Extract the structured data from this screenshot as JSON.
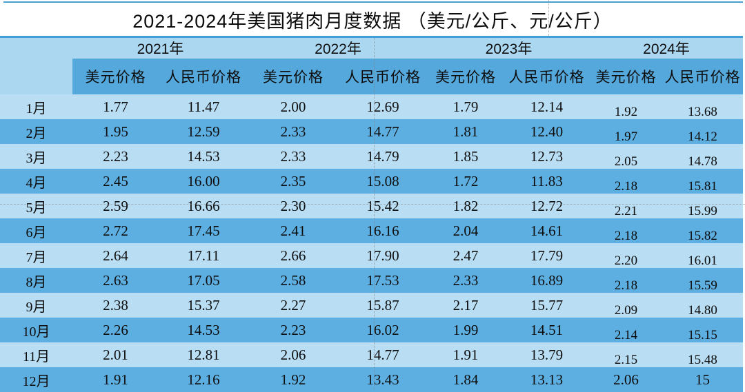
{
  "title": "2021-2024年美国猪肉月度数据 （美元/公斤、元/公斤）",
  "colors": {
    "top_rule": "#4A9FD2",
    "title_rule": "#3FA0D8",
    "year_band": "#ABD7F1",
    "subheader_band": "#55A8DC",
    "row_light": "#B9DEF4",
    "row_dark": "#5EAFE1"
  },
  "table": {
    "years": [
      "2021年",
      "2022年",
      "2023年",
      "2024年"
    ],
    "sub_headers": [
      "美元价格",
      "人民币价格",
      "美元价格",
      "人民币价格",
      "美元价格",
      "人民币价格",
      "美元价格",
      "人民币价格"
    ],
    "rows": [
      {
        "month": "1月",
        "values": [
          "1.77",
          "11.47",
          "2.00",
          "12.69",
          "1.79",
          "12.14",
          "1.92",
          "13.68"
        ]
      },
      {
        "month": "2月",
        "values": [
          "1.95",
          "12.59",
          "2.33",
          "14.77",
          "1.81",
          "12.40",
          "1.97",
          "14.12"
        ]
      },
      {
        "month": "3月",
        "values": [
          "2.23",
          "14.53",
          "2.33",
          "14.79",
          "1.85",
          "12.73",
          "2.05",
          "14.78"
        ]
      },
      {
        "month": "4月",
        "values": [
          "2.45",
          "16.00",
          "2.35",
          "15.08",
          "1.72",
          "11.83",
          "2.18",
          "15.81"
        ]
      },
      {
        "month": "5月",
        "values": [
          "2.59",
          "16.66",
          "2.30",
          "15.42",
          "1.82",
          "12.72",
          "2.21",
          "15.99"
        ]
      },
      {
        "month": "6月",
        "values": [
          "2.72",
          "17.45",
          "2.41",
          "16.16",
          "2.04",
          "14.61",
          "2.18",
          "15.82"
        ]
      },
      {
        "month": "7月",
        "values": [
          "2.64",
          "17.11",
          "2.66",
          "17.90",
          "2.47",
          "17.79",
          "2.20",
          "16.01"
        ]
      },
      {
        "month": "8月",
        "values": [
          "2.63",
          "17.05",
          "2.58",
          "17.53",
          "2.33",
          "16.89",
          "2.18",
          "15.59"
        ]
      },
      {
        "month": "9月",
        "values": [
          "2.38",
          "15.37",
          "2.27",
          "15.87",
          "2.17",
          "15.77",
          "2.09",
          "14.80"
        ]
      },
      {
        "month": "10月",
        "values": [
          "2.26",
          "14.53",
          "2.23",
          "16.02",
          "1.99",
          "14.51",
          "2.14",
          "15.15"
        ]
      },
      {
        "month": "11月",
        "values": [
          "2.01",
          "12.81",
          "2.06",
          "14.77",
          "1.91",
          "13.79",
          "2.15",
          "15.48"
        ]
      },
      {
        "month": "12月",
        "values": [
          "1.91",
          "12.16",
          "1.92",
          "13.43",
          "1.84",
          "13.13",
          "2.06",
          "15"
        ]
      }
    ]
  },
  "chart_data": {
    "type": "table",
    "title": "2021-2024年美国猪肉月度数据 （美元/公斤、元/公斤）",
    "categories": [
      "1月",
      "2月",
      "3月",
      "4月",
      "5月",
      "6月",
      "7月",
      "8月",
      "9月",
      "10月",
      "11月",
      "12月"
    ],
    "series": [
      {
        "name": "2021年 美元价格",
        "values": [
          1.77,
          1.95,
          2.23,
          2.45,
          2.59,
          2.72,
          2.64,
          2.63,
          2.38,
          2.26,
          2.01,
          1.91
        ]
      },
      {
        "name": "2021年 人民币价格",
        "values": [
          11.47,
          12.59,
          14.53,
          16.0,
          16.66,
          17.45,
          17.11,
          17.05,
          15.37,
          14.53,
          12.81,
          12.16
        ]
      },
      {
        "name": "2022年 美元价格",
        "values": [
          2.0,
          2.33,
          2.33,
          2.35,
          2.3,
          2.41,
          2.66,
          2.58,
          2.27,
          2.23,
          2.06,
          1.92
        ]
      },
      {
        "name": "2022年 人民币价格",
        "values": [
          12.69,
          14.77,
          14.79,
          15.08,
          15.42,
          16.16,
          17.9,
          17.53,
          15.87,
          16.02,
          14.77,
          13.43
        ]
      },
      {
        "name": "2023年 美元价格",
        "values": [
          1.79,
          1.81,
          1.85,
          1.72,
          1.82,
          2.04,
          2.47,
          2.33,
          2.17,
          1.99,
          1.91,
          1.84
        ]
      },
      {
        "name": "2023年 人民币价格",
        "values": [
          12.14,
          12.4,
          12.73,
          11.83,
          12.72,
          14.61,
          17.79,
          16.89,
          15.77,
          14.51,
          13.79,
          13.13
        ]
      },
      {
        "name": "2024年 美元价格",
        "values": [
          1.92,
          1.97,
          2.05,
          2.18,
          2.21,
          2.18,
          2.2,
          2.18,
          2.09,
          2.14,
          2.15,
          2.06
        ]
      },
      {
        "name": "2024年 人民币价格",
        "values": [
          13.68,
          14.12,
          14.78,
          15.81,
          15.99,
          15.82,
          16.01,
          15.59,
          14.8,
          15.15,
          15.48,
          15
        ]
      }
    ]
  }
}
